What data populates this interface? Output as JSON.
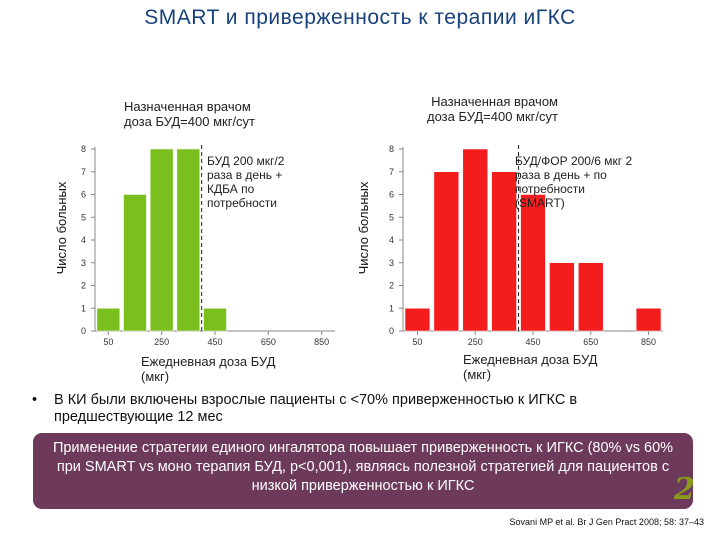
{
  "title": "SMART и  приверженность к терапии  иГКС",
  "chart_data": [
    {
      "type": "bar",
      "x": [
        50,
        150,
        250,
        350,
        450,
        550,
        650,
        750,
        850
      ],
      "values": [
        1,
        6,
        8,
        8,
        1,
        0,
        0,
        0,
        0
      ],
      "xticks": [
        "50",
        "250",
        "450",
        "650",
        "850"
      ],
      "ylim": [
        0,
        8
      ],
      "yticks": [
        "0",
        "1",
        "2",
        "3",
        "4",
        "5",
        "6",
        "7",
        "8"
      ],
      "ylabel": "Число больных",
      "xlabel": "Ежедневная доза БУД (мкг)",
      "color": "#7bbf1e",
      "grid": false,
      "annotations": {
        "prescribed": "Назначенная врачом доза БУД=400 мкг/сут",
        "regimen": "БУД 200 мкг/2 раза в день + КДБА по потребности"
      }
    },
    {
      "type": "bar",
      "x": [
        50,
        150,
        250,
        350,
        450,
        550,
        650,
        750,
        850
      ],
      "values": [
        1,
        7,
        8,
        7,
        6,
        3,
        3,
        0,
        1
      ],
      "xticks": [
        "50",
        "250",
        "450",
        "650",
        "850"
      ],
      "ylim": [
        0,
        8
      ],
      "yticks": [
        "0",
        "1",
        "2",
        "3",
        "4",
        "5",
        "6",
        "7",
        "8"
      ],
      "ylabel": "Число больных",
      "xlabel": "Ежедневная доза БУД (мкг)",
      "color": "#f41d1d",
      "grid": false,
      "annotations": {
        "prescribed": "Назначенная врачом доза БУД=400 мкг/сут",
        "regimen": "БУД/ФОР 200/6 мкг 2 раза в день + по потребности (SMART)"
      }
    }
  ],
  "bullet_symbol": "•",
  "bullet_text": "В КИ были включены взрослые пациенты с <70% приверженностью к ИГКС в предшествующие 12 мес",
  "banner_text": "Применение стратегии единого ингалятора повышает приверженность к ИГКС (80% vs 60% при SMART vs моно терапия БУД, p<0,001), являясь полезной стратегией для пациентов с низкой приверженностью к ИГКС",
  "citation": "Sovani MP et al. Br J Gen Pract 2008; 58: 37–43",
  "logo_text": "2"
}
